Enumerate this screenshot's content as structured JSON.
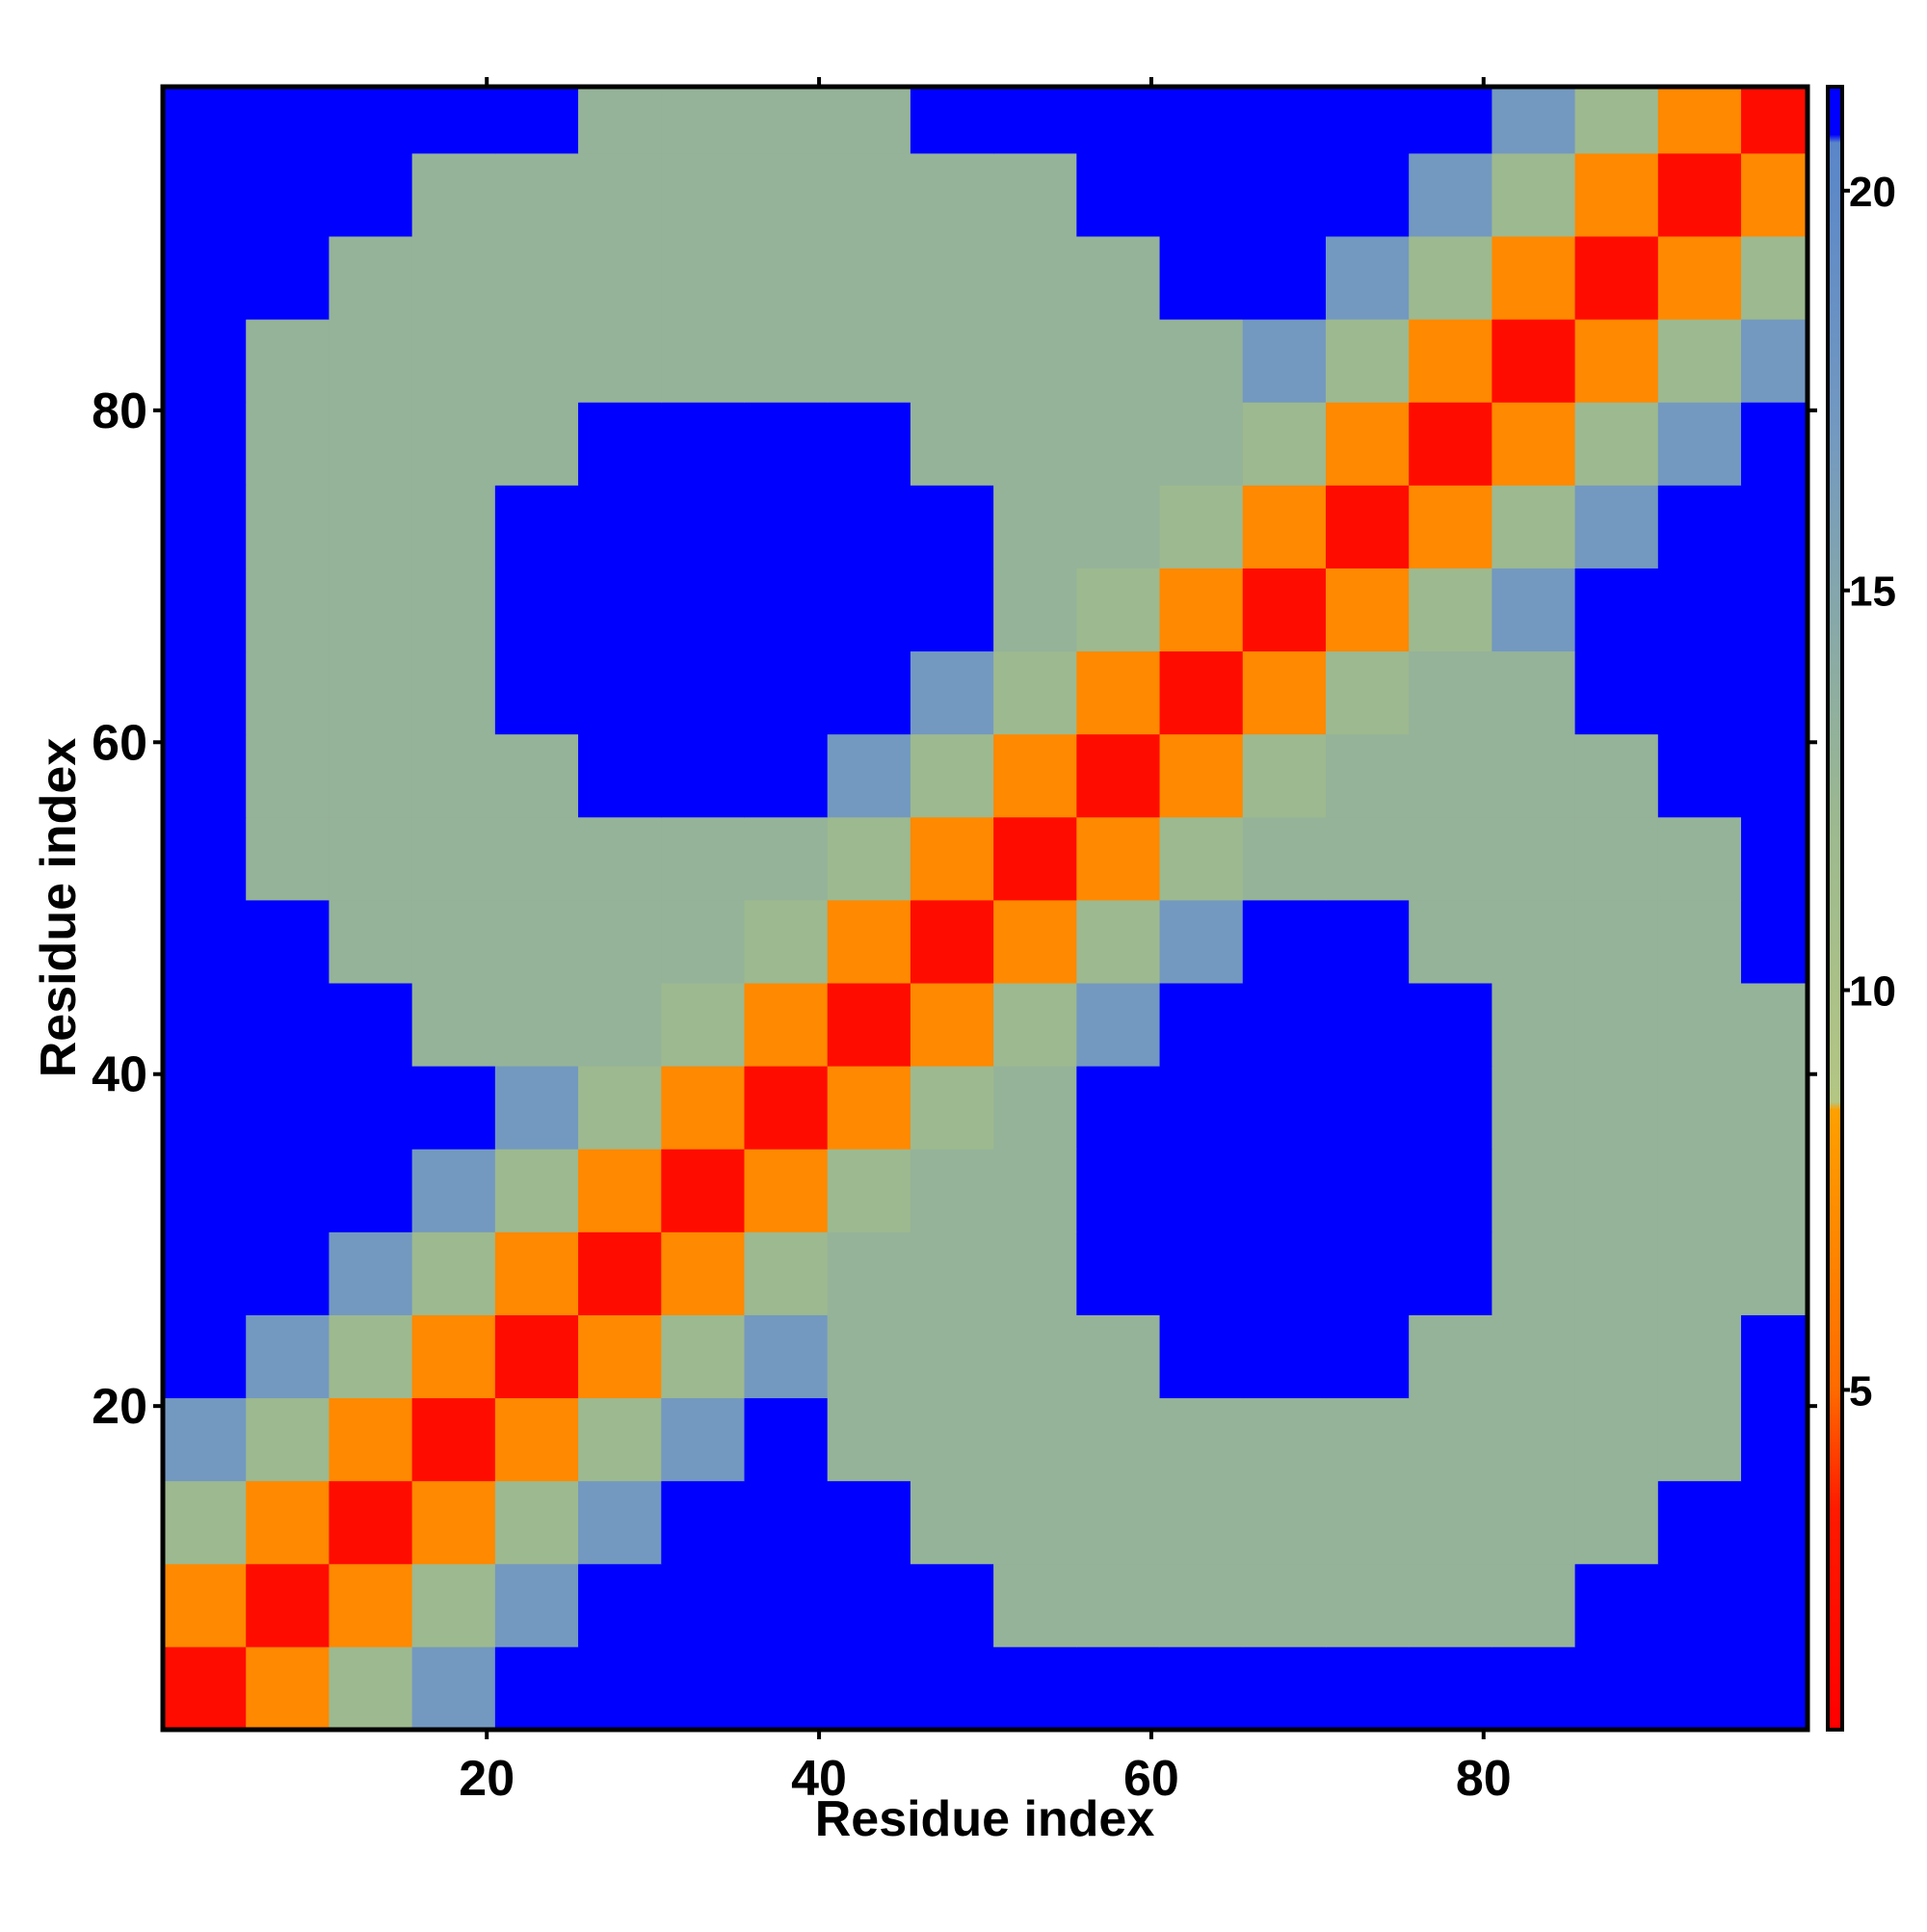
{
  "chart_data": {
    "type": "heatmap",
    "xlabel": "Residue index",
    "ylabel": "Residue index",
    "x": [
      3,
      8,
      13,
      18,
      23,
      28,
      33,
      38,
      43,
      48,
      53,
      58,
      63,
      68,
      73,
      78,
      83,
      88,
      93,
      98
    ],
    "y": [
      3,
      8,
      13,
      18,
      23,
      28,
      33,
      38,
      43,
      48,
      53,
      58,
      63,
      68,
      73,
      78,
      83,
      88,
      93,
      98
    ],
    "z": [
      [
        2,
        7,
        12,
        17,
        21,
        21,
        21,
        21,
        21,
        21,
        21,
        21,
        21,
        21,
        21,
        21,
        21,
        21,
        21,
        21
      ],
      [
        7,
        2,
        7,
        12,
        17,
        21,
        21,
        21,
        21,
        21,
        13,
        13,
        13,
        13,
        13,
        13,
        13,
        21,
        21,
        21
      ],
      [
        12,
        7,
        2,
        7,
        12,
        17,
        21,
        21,
        21,
        13,
        13,
        13,
        13,
        13,
        13,
        13,
        13,
        13,
        21,
        21
      ],
      [
        17,
        12,
        7,
        2,
        7,
        12,
        17,
        21,
        13,
        13,
        13,
        13,
        13,
        13,
        13,
        13,
        13,
        13,
        13,
        21
      ],
      [
        21,
        17,
        12,
        7,
        2,
        7,
        12,
        17,
        13,
        13,
        13,
        13,
        21,
        21,
        21,
        13,
        13,
        13,
        13,
        21
      ],
      [
        21,
        21,
        17,
        12,
        7,
        2,
        7,
        12,
        13,
        13,
        13,
        21,
        21,
        21,
        21,
        21,
        13,
        13,
        13,
        13
      ],
      [
        21,
        21,
        21,
        17,
        12,
        7,
        2,
        7,
        12,
        13,
        13,
        21,
        21,
        21,
        21,
        21,
        13,
        13,
        13,
        13
      ],
      [
        21,
        21,
        21,
        21,
        17,
        12,
        7,
        2,
        7,
        12,
        13,
        21,
        21,
        21,
        21,
        21,
        13,
        13,
        13,
        13
      ],
      [
        21,
        21,
        21,
        13,
        13,
        13,
        12,
        7,
        2,
        7,
        12,
        17,
        21,
        21,
        21,
        21,
        13,
        13,
        13,
        13
      ],
      [
        21,
        21,
        13,
        13,
        13,
        13,
        13,
        12,
        7,
        2,
        7,
        12,
        17,
        21,
        21,
        13,
        13,
        13,
        13,
        21
      ],
      [
        21,
        13,
        13,
        13,
        13,
        13,
        13,
        13,
        12,
        7,
        2,
        7,
        12,
        13,
        13,
        13,
        13,
        13,
        13,
        21
      ],
      [
        21,
        13,
        13,
        13,
        13,
        21,
        21,
        21,
        17,
        12,
        7,
        2,
        7,
        12,
        13,
        13,
        13,
        13,
        21,
        21
      ],
      [
        21,
        13,
        13,
        13,
        21,
        21,
        21,
        21,
        21,
        17,
        12,
        7,
        2,
        7,
        12,
        13,
        13,
        21,
        21,
        21
      ],
      [
        21,
        13,
        13,
        13,
        21,
        21,
        21,
        21,
        21,
        21,
        13,
        12,
        7,
        2,
        7,
        12,
        17,
        21,
        21,
        21
      ],
      [
        21,
        13,
        13,
        13,
        21,
        21,
        21,
        21,
        21,
        21,
        13,
        13,
        12,
        7,
        2,
        7,
        12,
        17,
        21,
        21
      ],
      [
        21,
        13,
        13,
        13,
        13,
        21,
        21,
        21,
        21,
        13,
        13,
        13,
        13,
        12,
        7,
        2,
        7,
        12,
        17,
        21
      ],
      [
        21,
        13,
        13,
        13,
        13,
        13,
        13,
        13,
        13,
        13,
        13,
        13,
        13,
        17,
        12,
        7,
        2,
        7,
        12,
        17
      ],
      [
        21,
        21,
        13,
        13,
        13,
        13,
        13,
        13,
        13,
        13,
        13,
        13,
        21,
        21,
        17,
        12,
        7,
        2,
        7,
        12
      ],
      [
        21,
        21,
        21,
        13,
        13,
        13,
        13,
        13,
        13,
        13,
        13,
        21,
        21,
        21,
        21,
        17,
        12,
        7,
        2,
        7
      ],
      [
        21,
        21,
        21,
        21,
        21,
        13,
        13,
        13,
        13,
        21,
        21,
        21,
        21,
        21,
        21,
        21,
        17,
        12,
        7,
        2
      ]
    ],
    "xlim": [
      0.5,
      99.5
    ],
    "ylim": [
      0.5,
      99.5
    ],
    "xticks": [
      20,
      40,
      60,
      80
    ],
    "yticks": [
      20,
      40,
      60,
      80
    ],
    "zlim": [
      0.75,
      21.3
    ],
    "zticks": [
      5,
      10,
      15,
      20
    ],
    "colorscale": [
      [
        0.75,
        "#ff0000"
      ],
      [
        3.5,
        "#ff1a00"
      ],
      [
        5,
        "#ff6a00"
      ],
      [
        8.5,
        "#ffa000"
      ],
      [
        8.6,
        "#b4c684"
      ],
      [
        12,
        "#9db98f"
      ],
      [
        17,
        "#7399c0"
      ],
      [
        20.6,
        "#5a86c8"
      ],
      [
        20.7,
        "#0000ff"
      ],
      [
        21.3,
        "#0000ff"
      ]
    ]
  }
}
